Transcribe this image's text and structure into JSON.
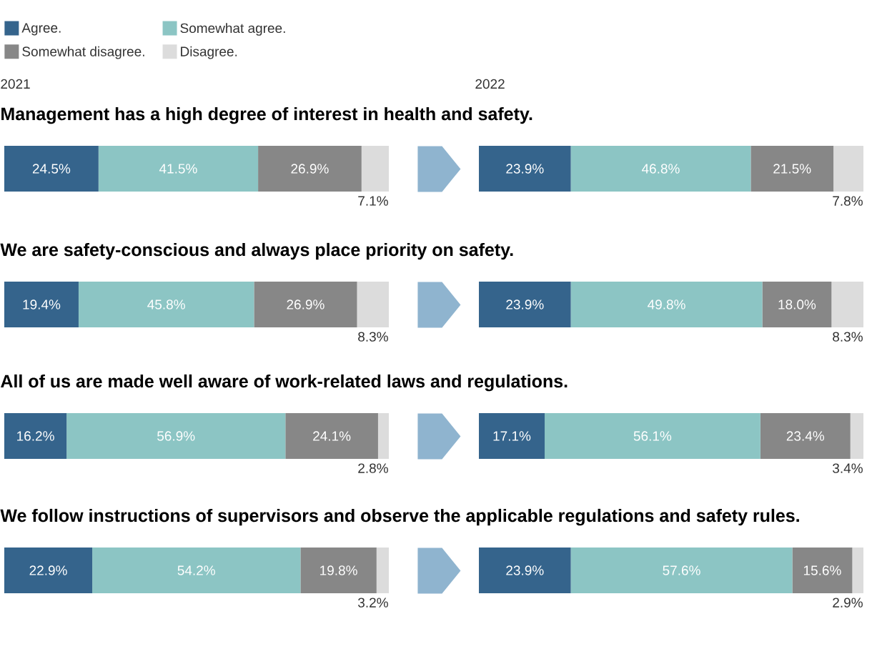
{
  "chart_data": [
    {
      "type": "bar",
      "orientation": "horizontal",
      "stacked": true,
      "tick_labels": false,
      "legend": "top left",
      "subtitle": "2021",
      "title": "Management has a high degree of interest in health and safety.",
      "categories": [
        null
      ],
      "series": [
        {
          "name": "Agree.",
          "color": "#35648c",
          "values": [
            24.5
          ],
          "value_labels": [
            "24.5%"
          ]
        },
        {
          "name": "Somewhat agree.",
          "color": "#8cc5c4",
          "values": [
            41.5
          ],
          "value_labels": [
            "41.5%"
          ]
        },
        {
          "name": "Somewhat disagree.",
          "color": "#878787",
          "values": [
            26.9
          ],
          "value_labels": [
            "26.9%"
          ]
        },
        {
          "name": "Disagree.",
          "color": "#dcdcdc",
          "values": [
            7.1
          ],
          "value_labels": [
            "7.1%"
          ]
        }
      ]
    },
    {
      "type": "bar",
      "orientation": "horizontal",
      "stacked": true,
      "tick_labels": false,
      "subtitle": "2022",
      "categories": [
        null
      ],
      "series": [
        {
          "color": "#35648c",
          "values": [
            23.9
          ],
          "value_labels": [
            "23.9%"
          ]
        },
        {
          "color": "#8cc5c4",
          "values": [
            46.8
          ],
          "value_labels": [
            "46.8%"
          ]
        },
        {
          "color": "#878787",
          "values": [
            21.5
          ],
          "value_labels": [
            "21.5%"
          ]
        },
        {
          "color": "#dcdcdc",
          "values": [
            7.8
          ],
          "value_labels": [
            "7.8%"
          ]
        }
      ]
    },
    {
      "type": "bar",
      "orientation": "horizontal",
      "stacked": true,
      "tick_labels": false,
      "title": "We are safety-conscious and always place priority on safety.",
      "categories": [
        null
      ],
      "series": [
        {
          "color": "#35648c",
          "values": [
            19.4
          ],
          "value_labels": [
            "19.4%"
          ]
        },
        {
          "color": "#8cc5c4",
          "values": [
            45.8
          ],
          "value_labels": [
            "45.8%"
          ]
        },
        {
          "color": "#878787",
          "values": [
            26.9
          ],
          "value_labels": [
            "26.9%"
          ]
        },
        {
          "color": "#dcdcdc",
          "values": [
            8.3
          ],
          "value_labels": [
            "8.3%"
          ]
        }
      ]
    },
    {
      "type": "bar",
      "orientation": "horizontal",
      "stacked": true,
      "tick_labels": false,
      "categories": [
        null
      ],
      "series": [
        {
          "color": "#35648c",
          "values": [
            23.9
          ],
          "value_labels": [
            "23.9%"
          ]
        },
        {
          "color": "#8cc5c4",
          "values": [
            49.8
          ],
          "value_labels": [
            "49.8%"
          ]
        },
        {
          "color": "#878787",
          "values": [
            18.0
          ],
          "value_labels": [
            "18.0%"
          ]
        },
        {
          "color": "#dcdcdc",
          "values": [
            8.3
          ],
          "value_labels": [
            "8.3%"
          ]
        }
      ]
    },
    {
      "type": "bar",
      "orientation": "horizontal",
      "stacked": true,
      "tick_labels": false,
      "title": "All of us are made well aware of work-related laws and regulations.",
      "categories": [
        null
      ],
      "series": [
        {
          "color": "#35648c",
          "values": [
            16.2
          ],
          "value_labels": [
            "16.2%"
          ]
        },
        {
          "color": "#8cc5c4",
          "values": [
            56.9
          ],
          "value_labels": [
            "56.9%"
          ]
        },
        {
          "color": "#878787",
          "values": [
            24.1
          ],
          "value_labels": [
            "24.1%"
          ]
        },
        {
          "color": "#dcdcdc",
          "values": [
            2.8
          ],
          "value_labels": [
            "2.8%"
          ]
        }
      ]
    },
    {
      "type": "bar",
      "orientation": "horizontal",
      "stacked": true,
      "tick_labels": false,
      "categories": [
        null
      ],
      "series": [
        {
          "color": "#35648c",
          "values": [
            17.1
          ],
          "value_labels": [
            "17.1%"
          ]
        },
        {
          "color": "#8cc5c4",
          "values": [
            56.1
          ],
          "value_labels": [
            "56.1%"
          ]
        },
        {
          "color": "#878787",
          "values": [
            23.4
          ],
          "value_labels": [
            "23.4%"
          ]
        },
        {
          "color": "#dcdcdc",
          "values": [
            3.4
          ],
          "value_labels": [
            "3.4%"
          ]
        }
      ]
    },
    {
      "type": "bar",
      "orientation": "horizontal",
      "stacked": true,
      "tick_labels": false,
      "title": "We follow instructions of supervisors and observe the applicable regulations and safety rules.",
      "categories": [
        null
      ],
      "series": [
        {
          "color": "#35648c",
          "values": [
            22.9
          ],
          "value_labels": [
            "22.9%"
          ]
        },
        {
          "color": "#8cc5c4",
          "values": [
            54.2
          ],
          "value_labels": [
            "54.2%"
          ]
        },
        {
          "color": "#878787",
          "values": [
            19.8
          ],
          "value_labels": [
            "19.8%"
          ]
        },
        {
          "color": "#dcdcdc",
          "values": [
            3.2
          ],
          "value_labels": [
            "3.2%"
          ]
        }
      ]
    },
    {
      "type": "bar",
      "orientation": "horizontal",
      "stacked": true,
      "tick_labels": false,
      "categories": [
        null
      ],
      "series": [
        {
          "color": "#35648c",
          "values": [
            23.9
          ],
          "value_labels": [
            "23.9%"
          ]
        },
        {
          "color": "#8cc5c4",
          "values": [
            57.6
          ],
          "value_labels": [
            "57.6%"
          ]
        },
        {
          "color": "#878787",
          "values": [
            15.6
          ],
          "value_labels": [
            "15.6%"
          ]
        },
        {
          "color": "#dcdcdc",
          "values": [
            2.9
          ],
          "value_labels": [
            "2.9%"
          ]
        }
      ]
    }
  ]
}
